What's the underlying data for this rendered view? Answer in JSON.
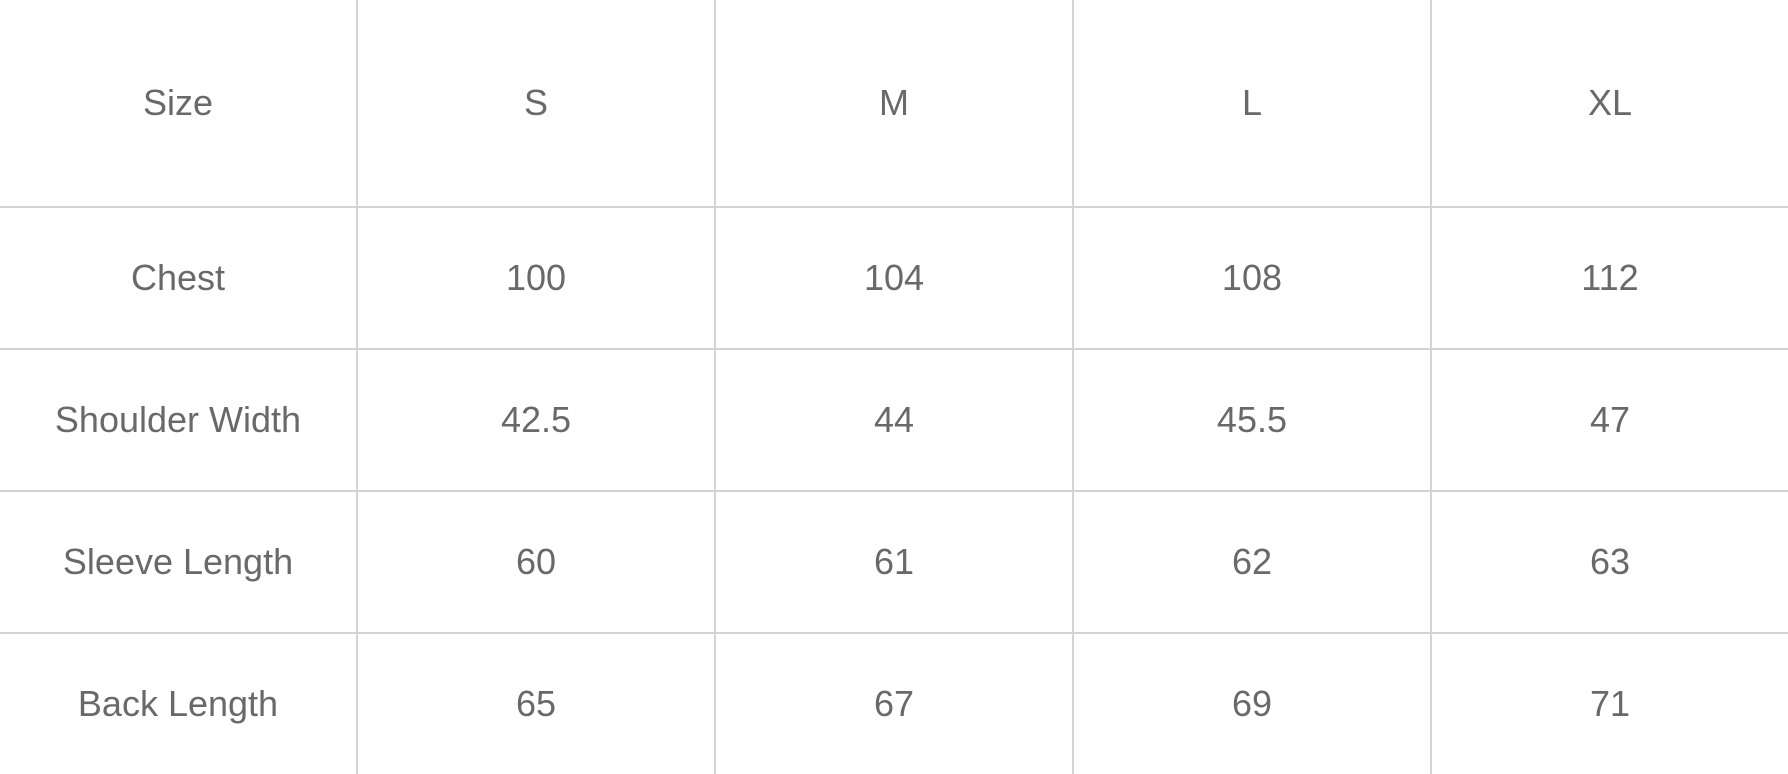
{
  "colors": {
    "background": "#ffffff",
    "text": "#696969",
    "gridline": "#d4d4d4"
  },
  "chart_data": {
    "type": "table",
    "title": "",
    "columns": [
      "Size",
      "S",
      "M",
      "L",
      "XL"
    ],
    "rows": [
      {
        "label": "Chest",
        "values": [
          "100",
          "104",
          "108",
          "112"
        ]
      },
      {
        "label": "Shoulder Width",
        "values": [
          "42.5",
          "44",
          "45.5",
          "47"
        ]
      },
      {
        "label": "Sleeve Length",
        "values": [
          "60",
          "61",
          "62",
          "63"
        ]
      },
      {
        "label": "Back Length",
        "values": [
          "65",
          "67",
          "69",
          "71"
        ]
      }
    ],
    "layout_hints": {
      "equal_column_widths": true,
      "grid": "interior-lines-only",
      "header_row_taller": true
    }
  }
}
